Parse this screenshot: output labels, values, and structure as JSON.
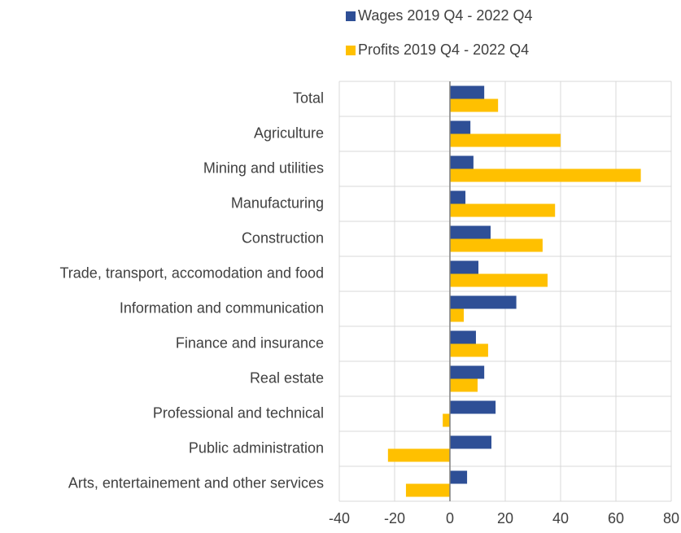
{
  "chart_data": {
    "type": "hbar",
    "categories": [
      "Total",
      "Agriculture",
      "Mining and utilities",
      "Manufacturing",
      "Construction",
      "Trade, transport, accomodation and food",
      "Information and communication",
      "Finance and insurance",
      "Real estate",
      "Professional and technical",
      "Public administration",
      "Arts, entertainement and other services"
    ],
    "series": [
      {
        "name": "Wages 2019 Q4 - 2022 Q4",
        "color": "#2e4f96",
        "values": [
          12.4,
          7.4,
          8.5,
          5.6,
          14.7,
          10.3,
          24,
          9.4,
          12.4,
          16.5,
          15,
          6.2
        ]
      },
      {
        "name": "Profits 2019 Q4 - 2022 Q4",
        "color": "#ffc000",
        "values": [
          17.4,
          40,
          69,
          38,
          33.5,
          35.3,
          5,
          13.8,
          10,
          -2.6,
          -22.4,
          -15.9
        ]
      }
    ],
    "xlim": [
      -40,
      80
    ],
    "xticks": [
      -40,
      -20,
      0,
      20,
      40,
      60,
      80
    ],
    "grid": true
  }
}
